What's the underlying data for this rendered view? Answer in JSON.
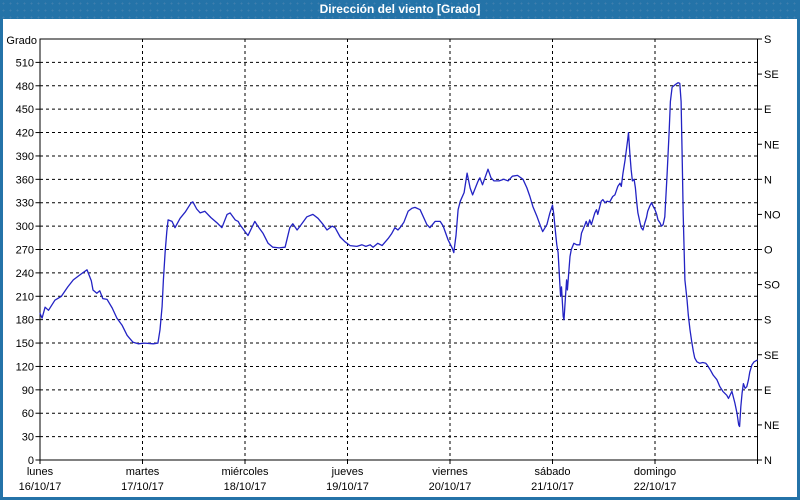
{
  "window": {
    "title": "Dirección del viento [Grado]",
    "titlebar_color": "#2473a8",
    "frame_color": "#2473a8"
  },
  "chart_data": {
    "type": "line",
    "title": "Dirección del viento [Grado]",
    "xlabel": "",
    "ylabel": "Grado",
    "ylim": [
      0,
      540
    ],
    "y_tick_step": 30,
    "y_tick_labels": [
      510,
      480,
      450,
      420,
      390,
      360,
      330,
      300,
      270,
      240,
      210,
      180,
      150,
      120,
      90,
      60,
      30,
      0
    ],
    "y2_ticks": [
      {
        "value": 540,
        "label": "S"
      },
      {
        "value": 495,
        "label": "SE"
      },
      {
        "value": 450,
        "label": "E"
      },
      {
        "value": 405,
        "label": "NE"
      },
      {
        "value": 360,
        "label": "N"
      },
      {
        "value": 315,
        "label": "NO"
      },
      {
        "value": 270,
        "label": "O"
      },
      {
        "value": 225,
        "label": "SO"
      },
      {
        "value": 180,
        "label": "S"
      },
      {
        "value": 135,
        "label": "SE"
      },
      {
        "value": 90,
        "label": "E"
      },
      {
        "value": 45,
        "label": "NE"
      },
      {
        "value": 0,
        "label": "N"
      }
    ],
    "x_range_hours": [
      0,
      168
    ],
    "x_days": [
      {
        "name": "lunes",
        "date": "16/10/17"
      },
      {
        "name": "martes",
        "date": "17/10/17"
      },
      {
        "name": "miércoles",
        "date": "18/10/17"
      },
      {
        "name": "jueves",
        "date": "19/10/17"
      },
      {
        "name": "viernes",
        "date": "20/10/17"
      },
      {
        "name": "sábado",
        "date": "21/10/17"
      },
      {
        "name": "domingo",
        "date": "22/10/17"
      }
    ],
    "grid": "dashed",
    "legend_position": "none",
    "series": [
      {
        "name": "Dirección del viento",
        "color": "#2323c4",
        "points_hours_degrees": [
          [
            0,
            188
          ],
          [
            0.5,
            182
          ],
          [
            1.2,
            196
          ],
          [
            2,
            192
          ],
          [
            3.5,
            205
          ],
          [
            5,
            210
          ],
          [
            6.5,
            222
          ],
          [
            7.8,
            231
          ],
          [
            9.5,
            238
          ],
          [
            11,
            244
          ],
          [
            12,
            230
          ],
          [
            12.4,
            218
          ],
          [
            13.3,
            214
          ],
          [
            14,
            217
          ],
          [
            14.7,
            207
          ],
          [
            15.7,
            206
          ],
          [
            16.9,
            195
          ],
          [
            18,
            182
          ],
          [
            19.2,
            173
          ],
          [
            20.4,
            160
          ],
          [
            21,
            156
          ],
          [
            21.8,
            151
          ],
          [
            23,
            149
          ],
          [
            24.5,
            150
          ],
          [
            26.5,
            149
          ],
          [
            27.6,
            150
          ],
          [
            28.1,
            167
          ],
          [
            28.6,
            197
          ],
          [
            28.9,
            231
          ],
          [
            29.3,
            266
          ],
          [
            29.7,
            293
          ],
          [
            30,
            308
          ],
          [
            30.9,
            306
          ],
          [
            31.6,
            298
          ],
          [
            32.8,
            310
          ],
          [
            34,
            318
          ],
          [
            35.4,
            330
          ],
          [
            35.8,
            331
          ],
          [
            36.7,
            322
          ],
          [
            37.5,
            317
          ],
          [
            38.6,
            319
          ],
          [
            40,
            311
          ],
          [
            41.5,
            304
          ],
          [
            42.6,
            298
          ],
          [
            43.8,
            315
          ],
          [
            44.5,
            317
          ],
          [
            45.7,
            308
          ],
          [
            46.4,
            306
          ],
          [
            46.8,
            302
          ],
          [
            48,
            293
          ],
          [
            48.7,
            288
          ],
          [
            50.3,
            306
          ],
          [
            51,
            300
          ],
          [
            52.2,
            291
          ],
          [
            53.4,
            278
          ],
          [
            54.5,
            273
          ],
          [
            56,
            272
          ],
          [
            57.4,
            273
          ],
          [
            58.5,
            298
          ],
          [
            59.2,
            303
          ],
          [
            60.2,
            295
          ],
          [
            60.9,
            300
          ],
          [
            62.5,
            312
          ],
          [
            63.9,
            315
          ],
          [
            65.1,
            310
          ],
          [
            66.3,
            302
          ],
          [
            67.2,
            295
          ],
          [
            68.4,
            300
          ],
          [
            69.1,
            298
          ],
          [
            70.3,
            286
          ],
          [
            71.4,
            280
          ],
          [
            72.6,
            275
          ],
          [
            74.2,
            274
          ],
          [
            75.4,
            276
          ],
          [
            76.3,
            274
          ],
          [
            77.3,
            276
          ],
          [
            78,
            273
          ],
          [
            79.1,
            278
          ],
          [
            80.1,
            275
          ],
          [
            81.5,
            284
          ],
          [
            82.3,
            290
          ],
          [
            83.1,
            298
          ],
          [
            83.8,
            295
          ],
          [
            84.3,
            298
          ],
          [
            85.2,
            305
          ],
          [
            86.2,
            319
          ],
          [
            87.1,
            323
          ],
          [
            87.8,
            324
          ],
          [
            89,
            321
          ],
          [
            90.6,
            302
          ],
          [
            91.3,
            298
          ],
          [
            92.5,
            306
          ],
          [
            93.7,
            306
          ],
          [
            94.4,
            300
          ],
          [
            95.5,
            283
          ],
          [
            96.5,
            272
          ],
          [
            96.9,
            266
          ],
          [
            97.4,
            288
          ],
          [
            97.9,
            321
          ],
          [
            98.4,
            332
          ],
          [
            99.3,
            343
          ],
          [
            100,
            368
          ],
          [
            100.7,
            349
          ],
          [
            101.3,
            340
          ],
          [
            102.5,
            357
          ],
          [
            103,
            362
          ],
          [
            103.6,
            353
          ],
          [
            104.9,
            373
          ],
          [
            105.6,
            362
          ],
          [
            106.3,
            358
          ],
          [
            107.5,
            358
          ],
          [
            108.6,
            360
          ],
          [
            109.6,
            358
          ],
          [
            110.6,
            364
          ],
          [
            111.8,
            365
          ],
          [
            113.1,
            360
          ],
          [
            114,
            349
          ],
          [
            114.7,
            338
          ],
          [
            115.4,
            325
          ],
          [
            116.4,
            312
          ],
          [
            117.2,
            300
          ],
          [
            117.7,
            293
          ],
          [
            118.7,
            302
          ],
          [
            119.4,
            317
          ],
          [
            120,
            327
          ],
          [
            120.3,
            315
          ],
          [
            120.5,
            304
          ],
          [
            120.8,
            287
          ],
          [
            121,
            276
          ],
          [
            121.3,
            266
          ],
          [
            121.5,
            248
          ],
          [
            121.7,
            227
          ],
          [
            121.9,
            210
          ],
          [
            122.1,
            222
          ],
          [
            122.5,
            184
          ],
          [
            122.7,
            180
          ],
          [
            123,
            206
          ],
          [
            123.3,
            231
          ],
          [
            123.5,
            218
          ],
          [
            124.1,
            261
          ],
          [
            124.4,
            270
          ],
          [
            125,
            278
          ],
          [
            125.7,
            276
          ],
          [
            126.4,
            276
          ],
          [
            126.8,
            291
          ],
          [
            127.6,
            302
          ],
          [
            127.9,
            306
          ],
          [
            128.3,
            300
          ],
          [
            128.7,
            308
          ],
          [
            129.1,
            302
          ],
          [
            129.9,
            317
          ],
          [
            130.3,
            321
          ],
          [
            130.6,
            315
          ],
          [
            131.4,
            332
          ],
          [
            131.8,
            334
          ],
          [
            132.3,
            330
          ],
          [
            132.8,
            332
          ],
          [
            133.4,
            331
          ],
          [
            134.1,
            338
          ],
          [
            134.6,
            340
          ],
          [
            135.3,
            351
          ],
          [
            135.8,
            355
          ],
          [
            136.1,
            351
          ],
          [
            136.5,
            368
          ],
          [
            137,
            385
          ],
          [
            137.3,
            398
          ],
          [
            137.6,
            411
          ],
          [
            137.8,
            420
          ],
          [
            138.1,
            394
          ],
          [
            138.4,
            373
          ],
          [
            138.7,
            358
          ],
          [
            139.1,
            360
          ],
          [
            139.4,
            349
          ],
          [
            139.7,
            332
          ],
          [
            140,
            317
          ],
          [
            140.5,
            304
          ],
          [
            140.8,
            298
          ],
          [
            141.2,
            295
          ],
          [
            141.6,
            304
          ],
          [
            142,
            311
          ],
          [
            142.3,
            319
          ],
          [
            142.8,
            326
          ],
          [
            143.2,
            330
          ],
          [
            143.5,
            326
          ],
          [
            144,
            321
          ],
          [
            144.4,
            315
          ],
          [
            144.7,
            308
          ],
          [
            145.2,
            304
          ],
          [
            145.5,
            300
          ],
          [
            145.9,
            302
          ],
          [
            146.3,
            312
          ],
          [
            146.8,
            364
          ],
          [
            147.3,
            420
          ],
          [
            147.6,
            460
          ],
          [
            148,
            478
          ],
          [
            148.4,
            480
          ],
          [
            148.9,
            482
          ],
          [
            149.4,
            484
          ],
          [
            149.8,
            483
          ],
          [
            150.1,
            460
          ],
          [
            150.4,
            380
          ],
          [
            150.6,
            315
          ],
          [
            151,
            231
          ],
          [
            151.5,
            206
          ],
          [
            151.8,
            186
          ],
          [
            152.2,
            167
          ],
          [
            152.6,
            152
          ],
          [
            153,
            139
          ],
          [
            153.3,
            131
          ],
          [
            153.8,
            126
          ],
          [
            154.5,
            124
          ],
          [
            155.2,
            125
          ],
          [
            155.9,
            124
          ],
          [
            156.2,
            122
          ],
          [
            156.9,
            116
          ],
          [
            157.6,
            109
          ],
          [
            158.5,
            103
          ],
          [
            159.2,
            94
          ],
          [
            159.9,
            88
          ],
          [
            160.8,
            83
          ],
          [
            161.2,
            79
          ],
          [
            162,
            88
          ],
          [
            162.7,
            73
          ],
          [
            163.2,
            60
          ],
          [
            163.6,
            45
          ],
          [
            163.8,
            43
          ],
          [
            164.1,
            68
          ],
          [
            164.4,
            86
          ],
          [
            164.7,
            98
          ],
          [
            165.1,
            92
          ],
          [
            165.5,
            94
          ],
          [
            165.9,
            103
          ],
          [
            166.2,
            113
          ],
          [
            166.7,
            122
          ],
          [
            167.2,
            126
          ],
          [
            167.9,
            128
          ]
        ]
      }
    ]
  }
}
